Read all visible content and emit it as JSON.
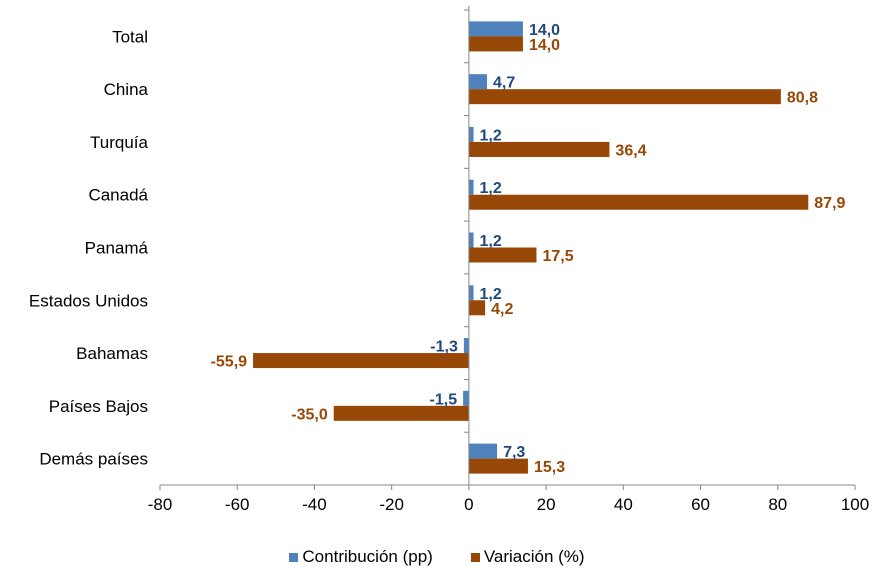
{
  "chart_data": {
    "type": "bar",
    "orientation": "horizontal",
    "categories": [
      "Total",
      "China",
      "Turquía",
      "Canadá",
      "Panamá",
      "Estados Unidos",
      "Bahamas",
      "Países Bajos",
      "Demás países"
    ],
    "series": [
      {
        "name": "Contribución (pp)",
        "color": "#4F81BD",
        "label_color": "#1F497D",
        "values": [
          14.0,
          4.7,
          1.2,
          1.2,
          1.2,
          1.2,
          -1.3,
          -1.5,
          7.3
        ],
        "labels": [
          "14,0",
          "4,7",
          "1,2",
          "1,2",
          "1,2",
          "1,2",
          "-1,3",
          "-1,5",
          "7,3"
        ]
      },
      {
        "name": "Variación (%)",
        "color": "#974706",
        "label_color": "#974706",
        "values": [
          14.0,
          80.8,
          36.4,
          87.9,
          17.5,
          4.2,
          -55.9,
          -35.0,
          15.3
        ],
        "labels": [
          "14,0",
          "80,8",
          "36,4",
          "87,9",
          "17,5",
          "4,2",
          "-55,9",
          "-35,0",
          "15,3"
        ]
      }
    ],
    "xlim": [
      -80,
      100
    ],
    "ticks": [
      -80,
      -60,
      -40,
      -20,
      0,
      20,
      40,
      60,
      80,
      100
    ],
    "legend_position": "bottom",
    "grid": false
  }
}
